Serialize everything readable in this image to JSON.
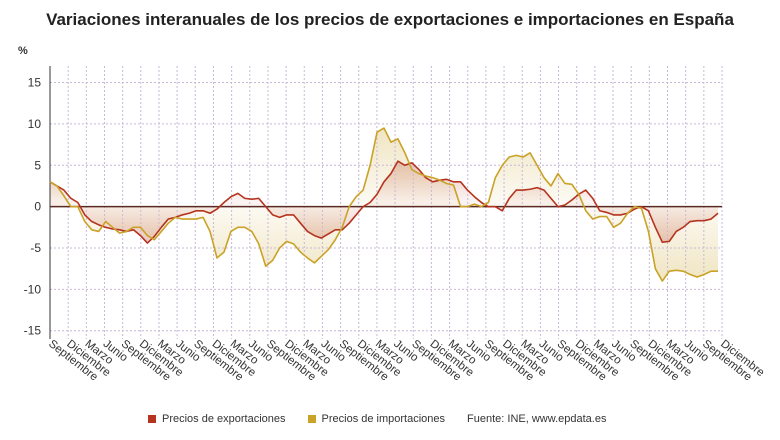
{
  "chart_data": {
    "type": "line",
    "title": "Variaciones interanuales de los precios de exportaciones e importaciones en España",
    "ylabel": "%",
    "xlabel": "",
    "ylim": [
      -16,
      17
    ],
    "yticks": [
      15,
      10,
      5,
      0,
      -5,
      -10,
      -15
    ],
    "x_tick_labels": [
      "Septiembre",
      "Diciembre",
      "Marzo",
      "Junio",
      "Septiembre",
      "Diciembre",
      "Marzo",
      "Junio",
      "Septiembre",
      "Diciembre",
      "Marzo",
      "Junio",
      "Septiembre",
      "Diciembre",
      "Marzo",
      "Junio",
      "Septiembre",
      "Diciembre",
      "Marzo",
      "Junio",
      "Septiembre",
      "Diciembre",
      "Marzo",
      "Junio",
      "Septiembre",
      "Diciembre",
      "Marzo",
      "Junio",
      "Septiembre",
      "Diciembre",
      "Marzo",
      "Junio",
      "Septiembre",
      "Diciembre",
      "Marzo",
      "Junio",
      "Septiembre",
      "Diciembre"
    ],
    "grid": true,
    "legend_position": "bottom",
    "source": "Fuente: INE, www.epdata.es",
    "series": [
      {
        "name": "Precios de exportaciones",
        "color": "#b5331f",
        "values": [
          3.0,
          2.5,
          2.0,
          1.0,
          0.5,
          -1.0,
          -1.8,
          -2.2,
          -2.5,
          -2.7,
          -2.8,
          -3.0,
          -2.8,
          -3.5,
          -4.4,
          -3.6,
          -2.5,
          -1.5,
          -1.3,
          -1.0,
          -0.8,
          -0.5,
          -0.5,
          -0.8,
          -0.3,
          0.5,
          1.2,
          1.6,
          1.0,
          0.9,
          1.0,
          0.0,
          -1.0,
          -1.3,
          -1.0,
          -1.0,
          -2.0,
          -3.0,
          -3.5,
          -3.8,
          -3.3,
          -2.8,
          -2.8,
          -2.0,
          -1.0,
          0.0,
          0.5,
          1.5,
          3.0,
          4.0,
          5.5,
          5.0,
          5.3,
          4.5,
          3.5,
          3.0,
          3.2,
          3.3,
          3.0,
          3.0,
          2.0,
          1.2,
          0.5,
          0.0,
          0.0,
          -0.5,
          1.0,
          2.0,
          2.0,
          2.1,
          2.3,
          2.0,
          1.0,
          0.0,
          0.2,
          0.8,
          1.5,
          2.0,
          1.0,
          -0.5,
          -0.7,
          -1.0,
          -1.0,
          -0.8,
          -0.3,
          0.0,
          -0.5,
          -2.5,
          -4.3,
          -4.2,
          -3.0,
          -2.5,
          -1.8,
          -1.7,
          -1.7,
          -1.5,
          -0.8
        ]
      },
      {
        "name": "Precios de importaciones",
        "color": "#c9a227",
        "values": [
          3.0,
          2.5,
          1.3,
          0.0,
          0.0,
          -1.8,
          -2.8,
          -3.0,
          -1.8,
          -2.5,
          -3.2,
          -3.0,
          -2.5,
          -2.5,
          -3.5,
          -4.0,
          -3.0,
          -2.0,
          -1.3,
          -1.5,
          -1.5,
          -1.5,
          -1.3,
          -3.0,
          -6.2,
          -5.5,
          -3.0,
          -2.5,
          -2.5,
          -3.0,
          -4.5,
          -7.2,
          -6.5,
          -5.0,
          -4.2,
          -4.5,
          -5.5,
          -6.2,
          -6.8,
          -6.0,
          -5.2,
          -4.0,
          -2.5,
          0.0,
          1.2,
          2.0,
          5.0,
          9.0,
          9.5,
          7.8,
          8.2,
          6.5,
          4.5,
          4.0,
          3.7,
          3.5,
          3.2,
          2.8,
          2.6,
          0.0,
          0.0,
          0.3,
          0.0,
          0.5,
          3.5,
          5.0,
          6.0,
          6.2,
          6.0,
          6.5,
          5.0,
          3.5,
          2.5,
          4.0,
          2.8,
          2.7,
          1.5,
          -0.5,
          -1.5,
          -1.2,
          -1.2,
          -2.5,
          -2.0,
          -0.8,
          0.0,
          -0.2,
          -3.0,
          -7.5,
          -9.0,
          -7.8,
          -7.7,
          -7.8,
          -8.2,
          -8.5,
          -8.2,
          -7.8,
          -7.8
        ]
      }
    ]
  }
}
